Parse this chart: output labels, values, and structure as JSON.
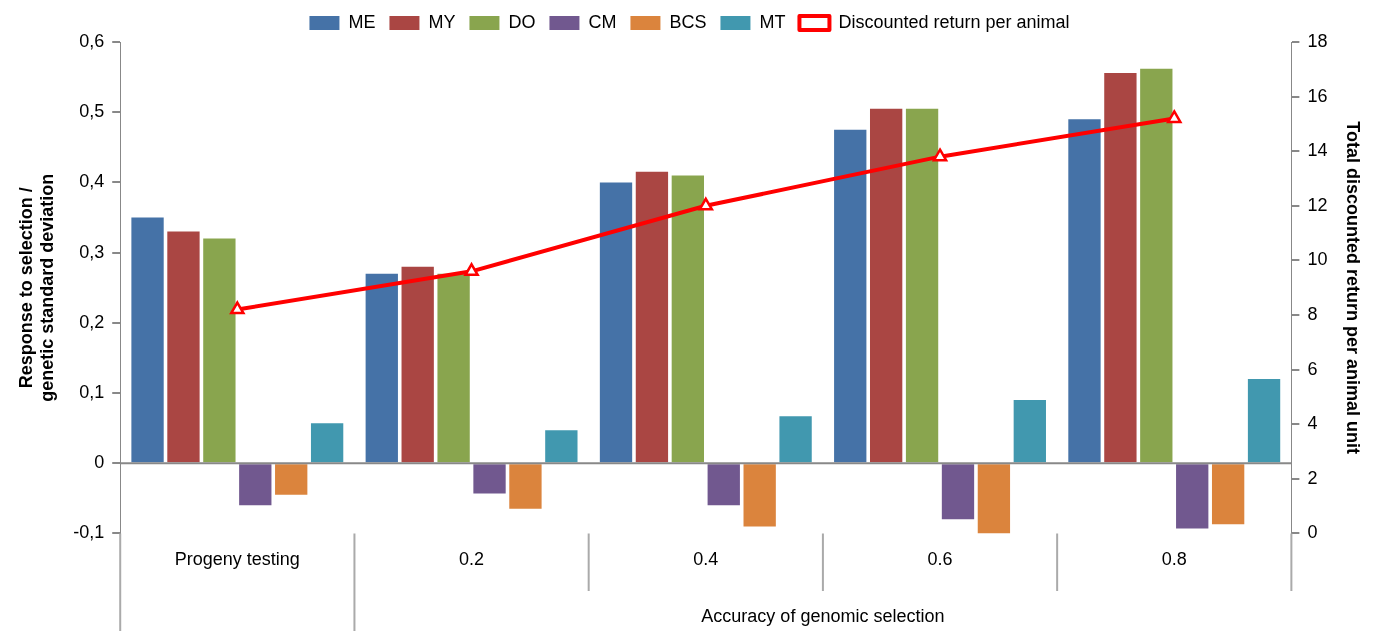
{
  "chart_data": {
    "type": "bar",
    "categories": [
      "Progeny testing",
      "0.2",
      "0.4",
      "0.6",
      "0.8"
    ],
    "xlabel": "Accuracy of genomic selection",
    "ylabel": "Response to selection /\ngenetic standard deviation",
    "y2label": "Total discounted return per animal unit",
    "series": [
      {
        "name": "ME",
        "color": "#4572a7",
        "values": [
          0.35,
          0.27,
          0.4,
          0.475,
          0.49
        ]
      },
      {
        "name": "MY",
        "color": "#aa4643",
        "values": [
          0.33,
          0.28,
          0.415,
          0.505,
          0.556
        ]
      },
      {
        "name": "DO",
        "color": "#89a54e",
        "values": [
          0.32,
          0.27,
          0.41,
          0.505,
          0.562
        ]
      },
      {
        "name": "CM",
        "color": "#71588f",
        "values": [
          -0.06,
          -0.043,
          -0.06,
          -0.08,
          -0.093
        ]
      },
      {
        "name": "BCS",
        "color": "#db843d",
        "values": [
          -0.045,
          -0.065,
          -0.09,
          -0.1,
          -0.087
        ]
      },
      {
        "name": "MT",
        "color": "#4198af",
        "values": [
          0.057,
          0.047,
          0.067,
          0.09,
          0.12
        ]
      },
      {
        "name": "Discounted return per animal",
        "type": "line",
        "axis": "y2",
        "color": "#ff0000",
        "marker": "triangle",
        "values": [
          8.2,
          9.6,
          12.0,
          13.8,
          15.2
        ]
      }
    ],
    "ylim": [
      -0.1,
      0.6
    ],
    "yticks": [
      {
        "value": -0.1,
        "label": "-0,1"
      },
      {
        "value": 0,
        "label": "0"
      },
      {
        "value": 0.1,
        "label": "0,1"
      },
      {
        "value": 0.2,
        "label": "0,2"
      },
      {
        "value": 0.3,
        "label": "0,3"
      },
      {
        "value": 0.4,
        "label": "0,4"
      },
      {
        "value": 0.5,
        "label": "0,5"
      },
      {
        "value": 0.6,
        "label": "0,6"
      }
    ],
    "y2lim": [
      0,
      18
    ],
    "y2ticks": [
      0,
      2,
      4,
      6,
      8,
      10,
      12,
      14,
      16,
      18
    ],
    "ref_lines": [
      {
        "axis": "y",
        "value": 0,
        "color": "#888888"
      }
    ],
    "legend": "top",
    "grid": false
  }
}
